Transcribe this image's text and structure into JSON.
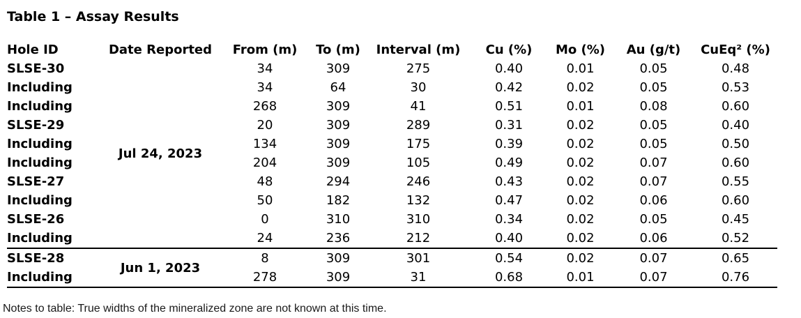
{
  "title": "Table 1 – Assay Results",
  "table": {
    "columns": [
      "Hole ID",
      "Date Reported",
      "From (m)",
      "To (m)",
      "Interval (m)",
      "Cu (%)",
      "Mo (%)",
      "Au (g/t)",
      "CuEq² (%)"
    ],
    "groups": [
      {
        "date_reported": "Jul 24, 2023",
        "rows": [
          {
            "hole_id": "SLSE-30",
            "from": "34",
            "to": "309",
            "interval": "275",
            "cu": "0.40",
            "mo": "0.01",
            "au": "0.05",
            "cueq": "0.48"
          },
          {
            "hole_id": "Including",
            "from": "34",
            "to": "64",
            "interval": "30",
            "cu": "0.42",
            "mo": "0.02",
            "au": "0.05",
            "cueq": "0.53"
          },
          {
            "hole_id": "Including",
            "from": "268",
            "to": "309",
            "interval": "41",
            "cu": "0.51",
            "mo": "0.01",
            "au": "0.08",
            "cueq": "0.60"
          },
          {
            "hole_id": "SLSE-29",
            "from": "20",
            "to": "309",
            "interval": "289",
            "cu": "0.31",
            "mo": "0.02",
            "au": "0.05",
            "cueq": "0.40"
          },
          {
            "hole_id": "Including",
            "from": "134",
            "to": "309",
            "interval": "175",
            "cu": "0.39",
            "mo": "0.02",
            "au": "0.05",
            "cueq": "0.50"
          },
          {
            "hole_id": "Including",
            "from": "204",
            "to": "309",
            "interval": "105",
            "cu": "0.49",
            "mo": "0.02",
            "au": "0.07",
            "cueq": "0.60"
          },
          {
            "hole_id": "SLSE-27",
            "from": "48",
            "to": "294",
            "interval": "246",
            "cu": "0.43",
            "mo": "0.02",
            "au": "0.07",
            "cueq": "0.55"
          },
          {
            "hole_id": "Including",
            "from": "50",
            "to": "182",
            "interval": "132",
            "cu": "0.47",
            "mo": "0.02",
            "au": "0.06",
            "cueq": "0.60"
          },
          {
            "hole_id": "SLSE-26",
            "from": "0",
            "to": "310",
            "interval": "310",
            "cu": "0.34",
            "mo": "0.02",
            "au": "0.05",
            "cueq": "0.45"
          },
          {
            "hole_id": "Including",
            "from": "24",
            "to": "236",
            "interval": "212",
            "cu": "0.40",
            "mo": "0.02",
            "au": "0.06",
            "cueq": "0.52"
          }
        ]
      },
      {
        "date_reported": "Jun 1, 2023",
        "rows": [
          {
            "hole_id": "SLSE-28",
            "from": "8",
            "to": "309",
            "interval": "301",
            "cu": "0.54",
            "mo": "0.02",
            "au": "0.07",
            "cueq": "0.65"
          },
          {
            "hole_id": "Including",
            "from": "278",
            "to": "309",
            "interval": "31",
            "cu": "0.68",
            "mo": "0.01",
            "au": "0.07",
            "cueq": "0.76"
          }
        ]
      }
    ]
  },
  "note": "Notes to table: True widths of the mineralized zone are not known at this time."
}
